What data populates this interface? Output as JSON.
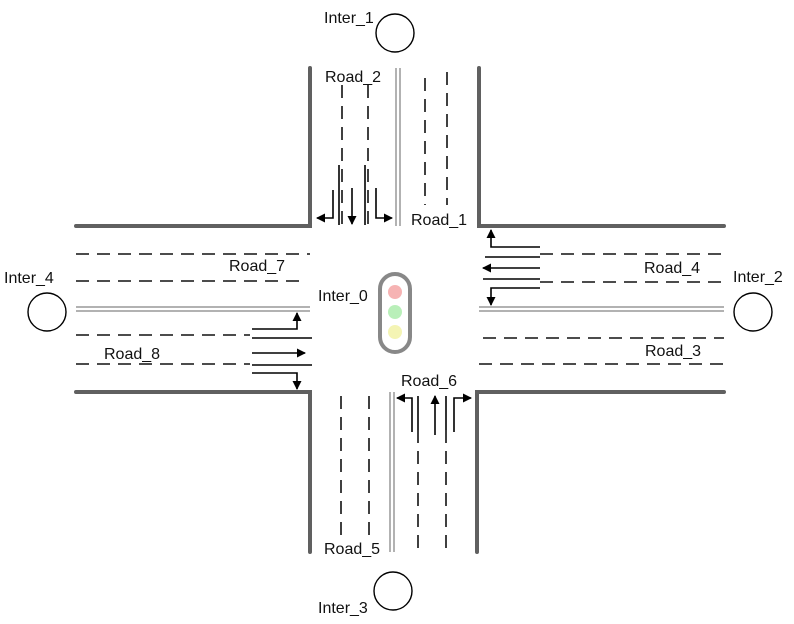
{
  "intersections": {
    "center": "Inter_0",
    "north": "Inter_1",
    "east": "Inter_2",
    "south": "Inter_3",
    "west": "Inter_4"
  },
  "roads": {
    "road_1": "Road_1",
    "road_2": "Road_2",
    "road_3": "Road_3",
    "road_4": "Road_4",
    "road_5": "Road_5",
    "road_6": "Road_6",
    "road_7": "Road_7",
    "road_8": "Road_8"
  },
  "traffic_light": {
    "housing_color": "#888888",
    "red": "#f6b3b3",
    "green": "#b9efb9",
    "yellow": "#f4f4b4"
  },
  "colors": {
    "curb": "#606060",
    "lane_line": "#111111",
    "median": "#999999"
  }
}
